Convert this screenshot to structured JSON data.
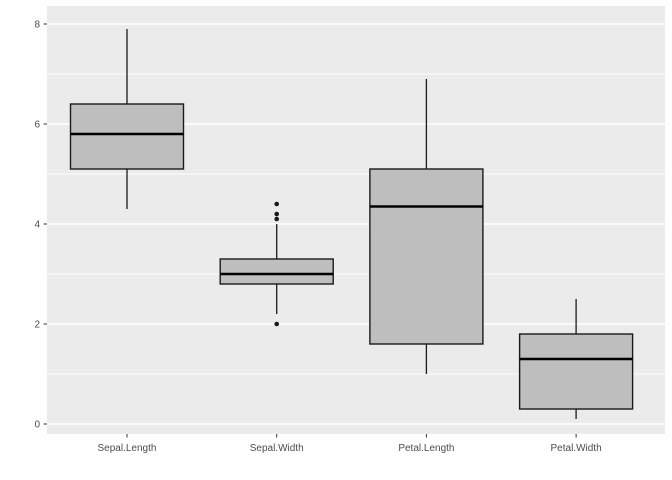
{
  "chart_data": {
    "type": "boxplot",
    "title": "",
    "xlabel": "",
    "ylabel": "",
    "categories": [
      "Sepal.Length",
      "Sepal.Width",
      "Petal.Length",
      "Petal.Width"
    ],
    "series": [
      {
        "name": "Sepal.Length",
        "whisker_low": 4.3,
        "q1": 5.1,
        "median": 5.8,
        "q3": 6.4,
        "whisker_high": 7.9,
        "outliers": []
      },
      {
        "name": "Sepal.Width",
        "whisker_low": 2.2,
        "q1": 2.8,
        "median": 3.0,
        "q3": 3.3,
        "whisker_high": 4.0,
        "outliers": [
          2.0,
          4.1,
          4.2,
          4.4
        ]
      },
      {
        "name": "Petal.Length",
        "whisker_low": 1.0,
        "q1": 1.6,
        "median": 4.35,
        "q3": 5.1,
        "whisker_high": 6.9,
        "outliers": []
      },
      {
        "name": "Petal.Width",
        "whisker_low": 0.1,
        "q1": 0.3,
        "median": 1.3,
        "q3": 1.8,
        "whisker_high": 2.5,
        "outliers": []
      }
    ],
    "y_ticks": [
      0,
      2,
      4,
      6,
      8
    ],
    "y_minor_ticks": [
      1,
      3,
      5,
      7
    ],
    "ylim": [
      -0.2,
      8.36
    ],
    "grid": true,
    "legend": false,
    "colors": {
      "background": "#FFFFFF",
      "panel_bg": "#EBEBEB",
      "grid_major": "#FFFFFF",
      "grid_minor": "#FFFFFF",
      "box_fill": "#BEBEBE",
      "box_border": "#1A1A1A",
      "median_line": "#000000",
      "outlier": "#1A1A1A",
      "axis_text": "#4D4D4D",
      "tick_mark": "#333333"
    }
  }
}
